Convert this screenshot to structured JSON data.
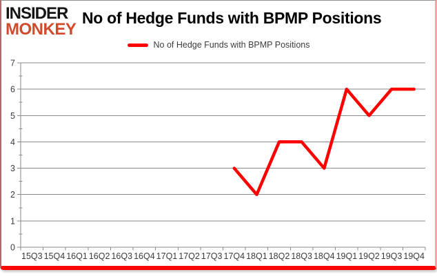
{
  "logo": {
    "line1": "INSIDER",
    "line2": "MONKEY"
  },
  "header": {
    "title": "No of Hedge Funds with BPMP Positions"
  },
  "legend": {
    "label": "No of Hedge Funds with BPMP Positions"
  },
  "colors": {
    "line": "#ff0000",
    "logo_accent": "#d04a2c",
    "gridline": "#8a8a8a",
    "axis_text": "#3b3b3b",
    "frame_bottom_border": "#fb0505"
  },
  "chart_data": {
    "type": "line",
    "title": "No of Hedge Funds with BPMP Positions",
    "categories": [
      "15Q3",
      "15Q4",
      "16Q1",
      "16Q2",
      "16Q3",
      "16Q4",
      "17Q1",
      "17Q2",
      "17Q3",
      "17Q4",
      "18Q1",
      "18Q2",
      "18Q3",
      "18Q4",
      "19Q1",
      "19Q2",
      "19Q3",
      "19Q4"
    ],
    "series": [
      {
        "name": "No of Hedge Funds with BPMP Positions",
        "color": "#ff0000",
        "values": [
          null,
          null,
          null,
          null,
          null,
          null,
          null,
          null,
          null,
          3,
          2,
          4,
          4,
          3,
          6,
          5,
          6,
          6
        ]
      }
    ],
    "xlabel": "",
    "ylabel": "",
    "ylim": [
      0,
      7
    ],
    "yticks": [
      0,
      1,
      2,
      3,
      4,
      5,
      6,
      7
    ],
    "grid": true,
    "legend_position": "top"
  }
}
